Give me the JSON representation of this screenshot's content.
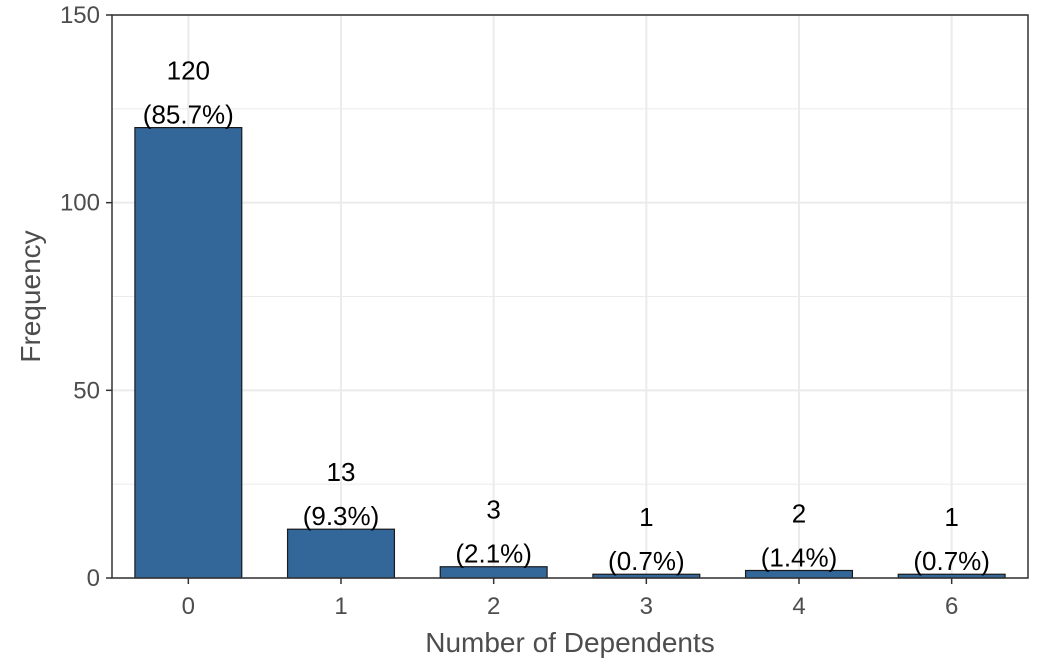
{
  "chart_data": {
    "type": "bar",
    "title": "",
    "xlabel": "Number of Dependents",
    "ylabel": "Frequency",
    "categories": [
      "0",
      "1",
      "2",
      "3",
      "4",
      "6"
    ],
    "values": [
      120,
      13,
      3,
      1,
      2,
      1
    ],
    "count_labels": [
      "120",
      "13",
      "3",
      "1",
      "2",
      "1"
    ],
    "percent_labels": [
      "(85.7%)",
      "(9.3%)",
      "(2.1%)",
      "(0.7%)",
      "(1.4%)",
      "(0.7%)"
    ],
    "ylim": [
      0,
      150
    ],
    "yticks": [
      0,
      50,
      100,
      150
    ],
    "ytick_labels": [
      "0",
      "50",
      "100",
      "150"
    ],
    "grid": true,
    "bar_color": "#336699",
    "bar_outline_color": "#1a1a1a",
    "grid_color": "#ebebeb",
    "panel_border_color": "#333333"
  }
}
